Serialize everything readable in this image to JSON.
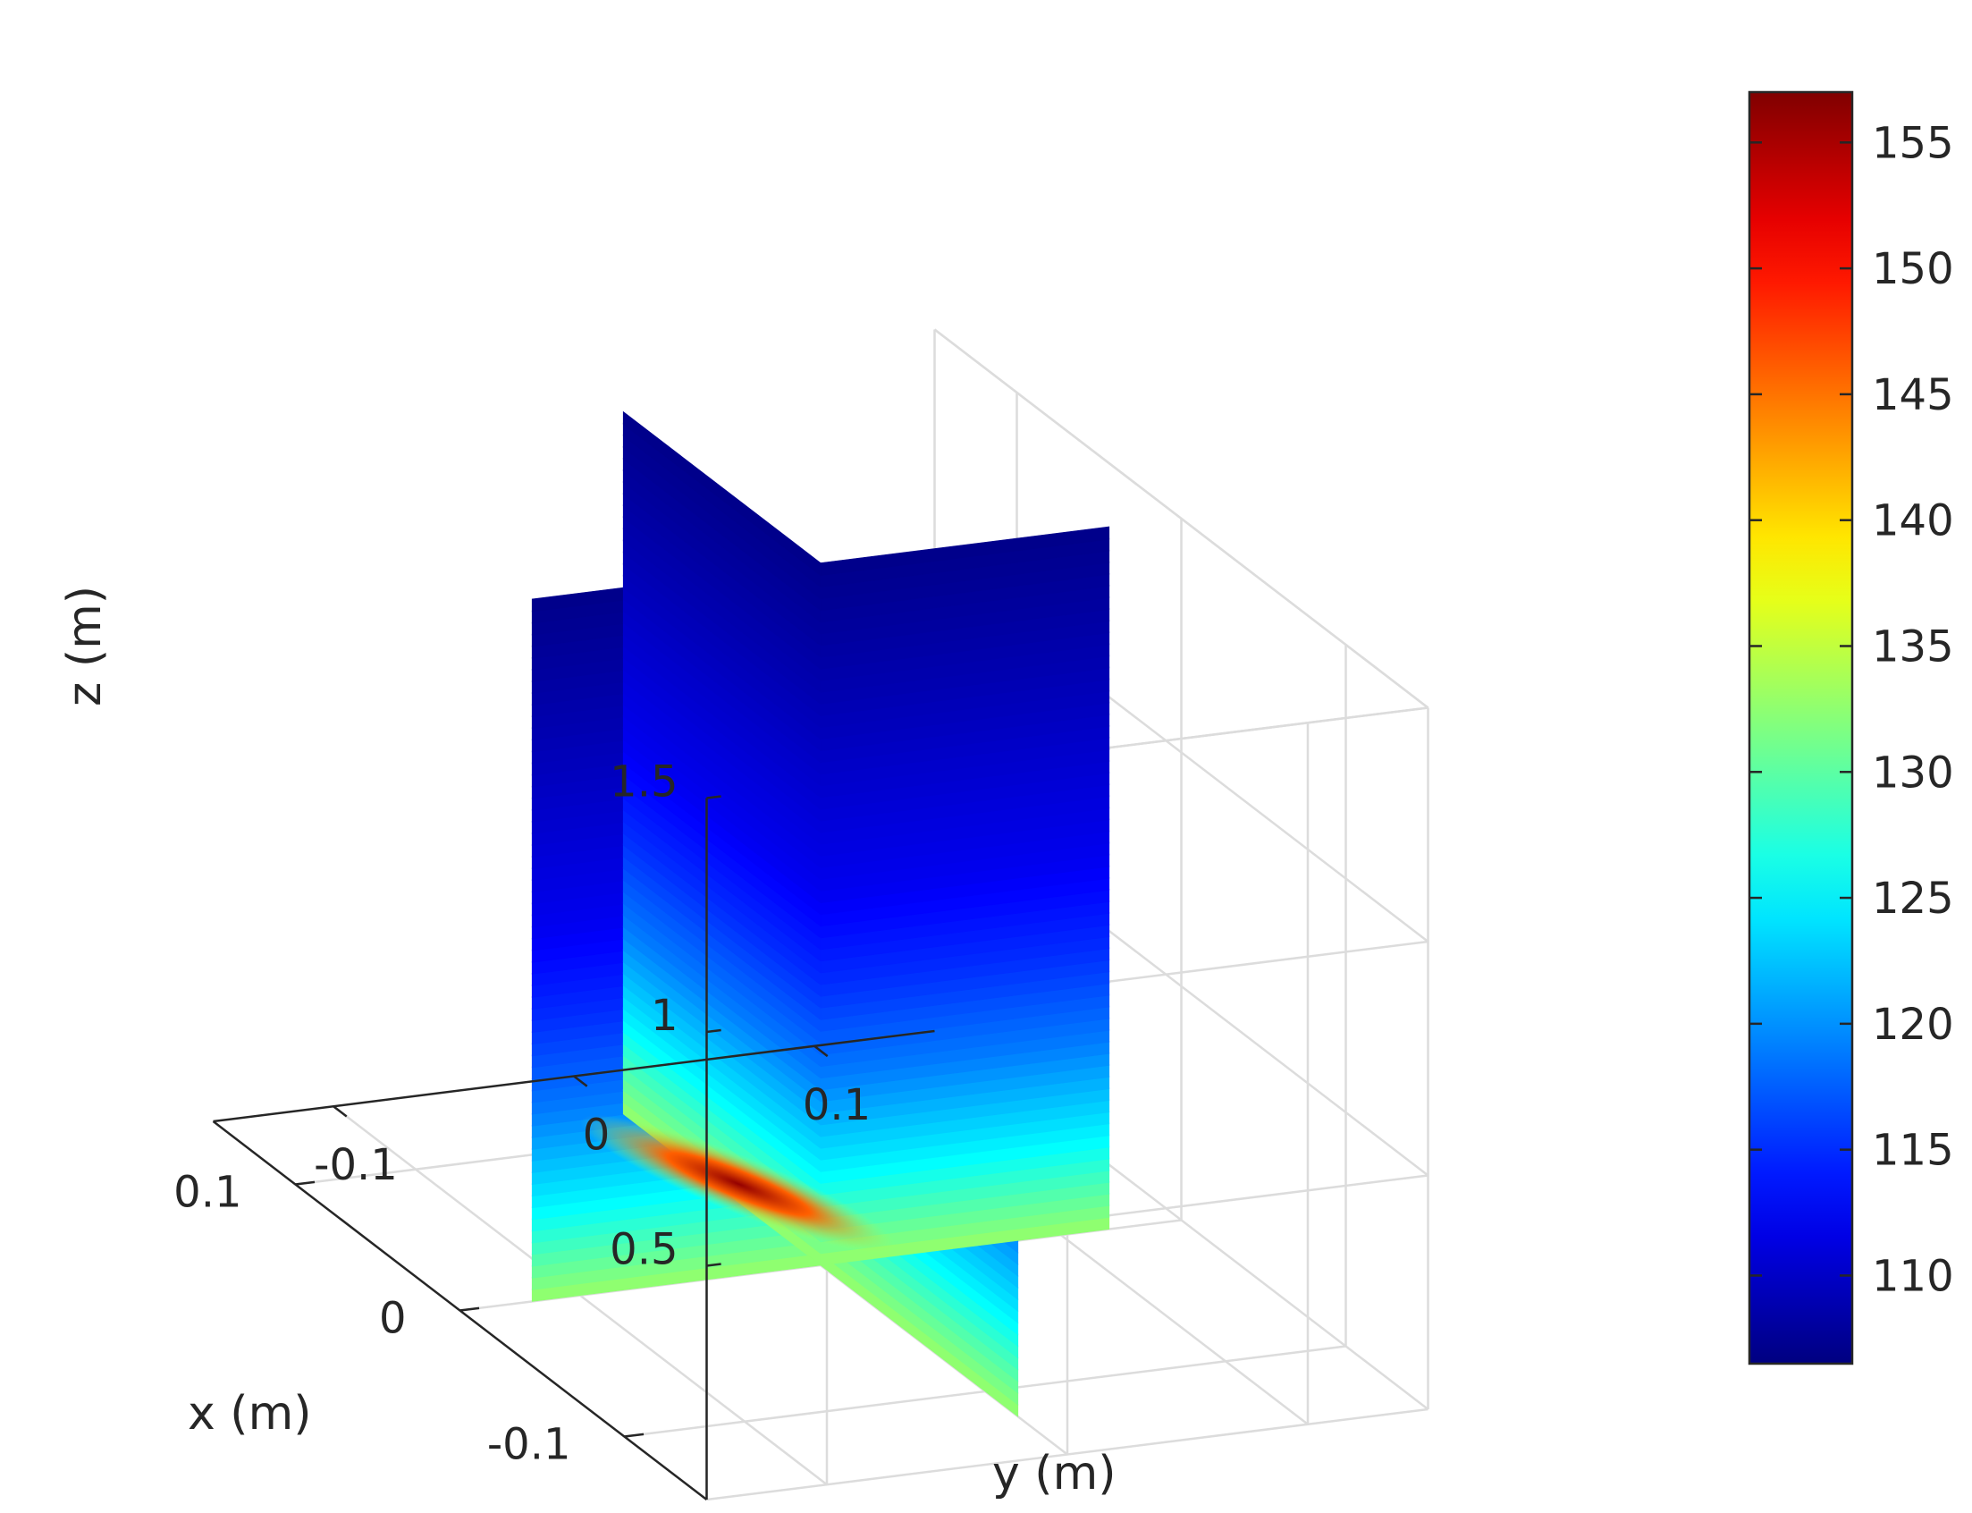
{
  "chart_data": {
    "type": "heatmap",
    "title": "",
    "xlabel": "x (m)",
    "ylabel": "y (m)",
    "zlabel": "z (m)",
    "x_ticks": [
      {
        "value": -0.1,
        "label": "-0.1"
      },
      {
        "value": 0,
        "label": "0"
      },
      {
        "value": 0.1,
        "label": "0.1"
      }
    ],
    "y_ticks": [
      {
        "value": -0.1,
        "label": "-0.1"
      },
      {
        "value": 0,
        "label": "0"
      },
      {
        "value": 0.1,
        "label": "0.1"
      }
    ],
    "z_ticks": [
      {
        "value": 0.5,
        "label": "0.5"
      },
      {
        "value": 1,
        "label": "1"
      },
      {
        "value": 1.5,
        "label": "1.5"
      }
    ],
    "xlim": [
      -0.15,
      0.15
    ],
    "ylim": [
      -0.15,
      0.15
    ],
    "zlim": [
      0,
      1.5
    ],
    "grid": true,
    "colormap": "jet",
    "colorbar": {
      "range": [
        106.5,
        157
      ],
      "ticks": [
        {
          "value": 110,
          "label": "110"
        },
        {
          "value": 115,
          "label": "115"
        },
        {
          "value": 120,
          "label": "120"
        },
        {
          "value": 125,
          "label": "125"
        },
        {
          "value": 130,
          "label": "130"
        },
        {
          "value": 135,
          "label": "135"
        },
        {
          "value": 140,
          "label": "140"
        },
        {
          "value": 145,
          "label": "145"
        },
        {
          "value": 150,
          "label": "150"
        },
        {
          "value": 155,
          "label": "155"
        }
      ]
    },
    "series": [
      {
        "plane": "x = 0 (vertical slice)",
        "source": {
          "x": 0,
          "y": 0,
          "z": 0,
          "peak_value": 156
        },
        "z_profile": [
          {
            "z": 0.0,
            "value": 133
          },
          {
            "z": 0.2,
            "value": 125
          },
          {
            "z": 0.4,
            "value": 119
          },
          {
            "z": 0.6,
            "value": 115
          },
          {
            "z": 0.8,
            "value": 112
          },
          {
            "z": 1.0,
            "value": 110.5
          },
          {
            "z": 1.2,
            "value": 109
          },
          {
            "z": 1.5,
            "value": 107
          }
        ]
      },
      {
        "plane": "y = 0 (vertical slice)",
        "source": {
          "x": 0,
          "y": 0,
          "z": 0,
          "peak_value": 156
        },
        "z_profile": [
          {
            "z": 0.0,
            "value": 133
          },
          {
            "z": 0.2,
            "value": 125
          },
          {
            "z": 0.4,
            "value": 119
          },
          {
            "z": 0.6,
            "value": 115
          },
          {
            "z": 0.8,
            "value": 112
          },
          {
            "z": 1.0,
            "value": 110.5
          },
          {
            "z": 1.2,
            "value": 109
          },
          {
            "z": 1.5,
            "value": 107
          }
        ]
      }
    ]
  }
}
